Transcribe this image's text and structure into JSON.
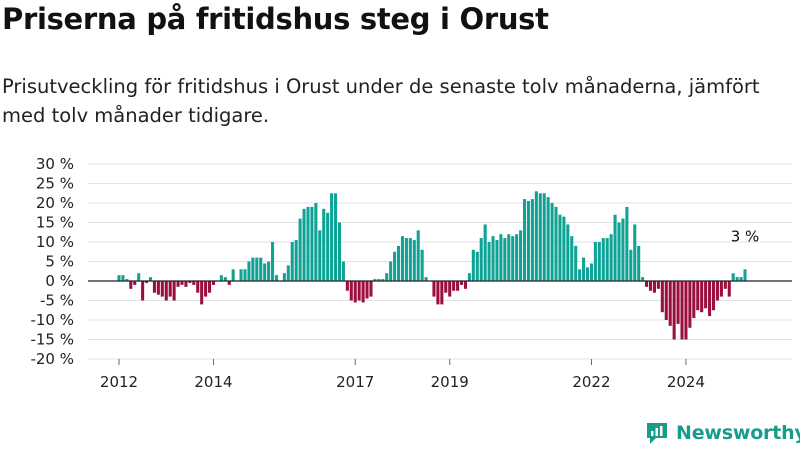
{
  "header": {
    "title": "Priserna på fritidshus steg i Orust",
    "subtitle": "Prisutveckling för fritidshus i Orust under de senaste tolv månaderna, jämfört med tolv månader tidigare."
  },
  "brand": {
    "name": "Newsworthy",
    "icon": "newsworthy-logo-icon"
  },
  "colors": {
    "positive": "#0fa396",
    "negative": "#9b0f3c",
    "grid": "#e2e2e2",
    "zero_line": "#222222"
  },
  "chart_data": {
    "type": "bar",
    "ylim": [
      -20,
      30
    ],
    "y_ticks": [
      {
        "value": 30,
        "label": "30 %"
      },
      {
        "value": 25,
        "label": "25 %"
      },
      {
        "value": 20,
        "label": "20 %"
      },
      {
        "value": 15,
        "label": "15 %"
      },
      {
        "value": 10,
        "label": "10 %"
      },
      {
        "value": 5,
        "label": "5 %"
      },
      {
        "value": 0,
        "label": "0 %"
      },
      {
        "value": -5,
        "label": "-5 %"
      },
      {
        "value": -10,
        "label": "-10 %"
      },
      {
        "value": -15,
        "label": "-15 %"
      },
      {
        "value": -20,
        "label": "-20 %"
      }
    ],
    "x_ticks": [
      {
        "value": 2012,
        "label": "2012"
      },
      {
        "value": 2014,
        "label": "2014"
      },
      {
        "value": 2017,
        "label": "2017"
      },
      {
        "value": 2019,
        "label": "2019"
      },
      {
        "value": 2022,
        "label": "2022"
      },
      {
        "value": 2024,
        "label": "2024"
      }
    ],
    "start_date": "2012-01",
    "values": [
      1.5,
      1.5,
      0.5,
      -2,
      -1,
      2,
      -5,
      -0.5,
      1,
      -3,
      -3.5,
      -4,
      -5,
      -4,
      -5,
      -1.5,
      -1,
      -1.5,
      -0.5,
      -1,
      -3,
      -6,
      -4,
      -3,
      -1,
      0,
      1.5,
      1,
      -1,
      3,
      0,
      3,
      3,
      5,
      6,
      6,
      6,
      4.5,
      5,
      10,
      1.5,
      0,
      2,
      4,
      10,
      10.5,
      16,
      18.5,
      19,
      19,
      20,
      13,
      18.5,
      17.5,
      22.5,
      22.5,
      15,
      5,
      -2.5,
      -5,
      -5.5,
      -5,
      -5.5,
      -4.5,
      -4,
      0.5,
      0.5,
      0.5,
      2,
      5,
      7.5,
      9,
      11.5,
      11,
      11,
      10.5,
      13,
      8,
      1,
      0,
      -4,
      -6,
      -6,
      -3,
      -4,
      -2.5,
      -2.5,
      -1,
      -2,
      2,
      8,
      7.5,
      11,
      14.5,
      10,
      11.5,
      10.5,
      12,
      11,
      12,
      11.5,
      12,
      13,
      21,
      20.5,
      21,
      23,
      22.5,
      22.5,
      21.5,
      20,
      19,
      17,
      16.5,
      14.5,
      11.5,
      9,
      3,
      6,
      3.5,
      4.5,
      10,
      10,
      11,
      11,
      12,
      17,
      15,
      16,
      19,
      8,
      14.5,
      9,
      1,
      -1.5,
      -2.5,
      -3,
      -2,
      -8,
      -10,
      -11.5,
      -15,
      -11,
      -15,
      -15,
      -12,
      -9.5,
      -7.5,
      -8,
      -7,
      -9,
      -7.5,
      -5,
      -4,
      -2,
      -4,
      2,
      1,
      1,
      3
    ],
    "annotations": [
      {
        "label": "3 %",
        "value": 3
      }
    ]
  }
}
